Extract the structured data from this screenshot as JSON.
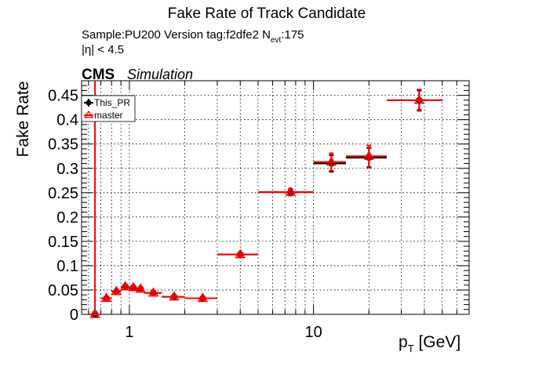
{
  "header": {
    "title": "Fake Rate of Track Candidate",
    "sample_line": "Sample:PU200   Version tag:f2dfe2  N",
    "sample_sub": "evt",
    "sample_count": ":175",
    "eta_cut": "|η| < 4.5",
    "cms": "CMS",
    "simulation": "Simulation"
  },
  "colors": {
    "this_pr": "#000000",
    "master": "#ff0000"
  },
  "chart_data": {
    "type": "scatter",
    "title": "Fake Rate of Track Candidate",
    "ylabel": "Fake Rate",
    "xlabel_main": "p",
    "xlabel_sub": "T",
    "xlabel_unit": " [GeV]",
    "x_scale": "log",
    "xlim": [
      0.55,
      70
    ],
    "ylim": [
      0,
      0.48
    ],
    "grid": true,
    "legend_position": "top-left",
    "xticks": [
      {
        "v": 1,
        "label": "1"
      },
      {
        "v": 10,
        "label": "10"
      }
    ],
    "yticks": [
      {
        "v": 0,
        "label": "0"
      },
      {
        "v": 0.05,
        "label": "0.05"
      },
      {
        "v": 0.1,
        "label": "0.1"
      },
      {
        "v": 0.15,
        "label": "0.15"
      },
      {
        "v": 0.2,
        "label": "0.2"
      },
      {
        "v": 0.25,
        "label": "0.25"
      },
      {
        "v": 0.3,
        "label": "0.3"
      },
      {
        "v": 0.35,
        "label": "0.35"
      },
      {
        "v": 0.4,
        "label": "0.4"
      },
      {
        "v": 0.45,
        "label": "0.45"
      }
    ],
    "series": [
      {
        "name": "This_PR",
        "marker": "circle",
        "points": [
          {
            "x": 0.65,
            "xlo": 0.6,
            "xhi": 0.7,
            "y": 0.0,
            "err": 0.005
          },
          {
            "x": 0.75,
            "xlo": 0.7,
            "xhi": 0.8,
            "y": 0.033,
            "err": 0.004
          },
          {
            "x": 0.85,
            "xlo": 0.8,
            "xhi": 0.9,
            "y": 0.047,
            "err": 0.004
          },
          {
            "x": 0.95,
            "xlo": 0.9,
            "xhi": 1.0,
            "y": 0.057,
            "err": 0.004
          },
          {
            "x": 1.05,
            "xlo": 1.0,
            "xhi": 1.1,
            "y": 0.055,
            "err": 0.004
          },
          {
            "x": 1.15,
            "xlo": 1.1,
            "xhi": 1.2,
            "y": 0.052,
            "err": 0.004
          },
          {
            "x": 1.35,
            "xlo": 1.2,
            "xhi": 1.5,
            "y": 0.044,
            "err": 0.004
          },
          {
            "x": 1.75,
            "xlo": 1.5,
            "xhi": 2.0,
            "y": 0.036,
            "err": 0.003
          },
          {
            "x": 2.5,
            "xlo": 2.0,
            "xhi": 3.0,
            "y": 0.033,
            "err": 0.003
          },
          {
            "x": 4.0,
            "xlo": 3.0,
            "xhi": 5.0,
            "y": 0.123,
            "err": 0.004
          },
          {
            "x": 7.5,
            "xlo": 5.0,
            "xhi": 10.0,
            "y": 0.251,
            "err": 0.007
          },
          {
            "x": 12.5,
            "xlo": 10.0,
            "xhi": 15.0,
            "y": 0.31,
            "err": 0.017
          },
          {
            "x": 20.0,
            "xlo": 15.0,
            "xhi": 25.0,
            "y": 0.322,
            "err": 0.02
          },
          {
            "x": 37.5,
            "xlo": 25.0,
            "xhi": 50.0,
            "y": 0.44,
            "err": 0.02
          }
        ]
      },
      {
        "name": "master",
        "marker": "triangle",
        "points": [
          {
            "x": 0.65,
            "xlo": 0.6,
            "xhi": 0.7,
            "y": 0.0,
            "err": 0.5
          },
          {
            "x": 0.75,
            "xlo": 0.7,
            "xhi": 0.8,
            "y": 0.033,
            "err": 0.004
          },
          {
            "x": 0.85,
            "xlo": 0.8,
            "xhi": 0.9,
            "y": 0.047,
            "err": 0.004
          },
          {
            "x": 0.95,
            "xlo": 0.9,
            "xhi": 1.0,
            "y": 0.057,
            "err": 0.004
          },
          {
            "x": 1.05,
            "xlo": 1.0,
            "xhi": 1.1,
            "y": 0.055,
            "err": 0.004
          },
          {
            "x": 1.15,
            "xlo": 1.1,
            "xhi": 1.2,
            "y": 0.052,
            "err": 0.004
          },
          {
            "x": 1.35,
            "xlo": 1.2,
            "xhi": 1.5,
            "y": 0.044,
            "err": 0.004
          },
          {
            "x": 1.75,
            "xlo": 1.5,
            "xhi": 2.0,
            "y": 0.036,
            "err": 0.003
          },
          {
            "x": 2.5,
            "xlo": 2.0,
            "xhi": 3.0,
            "y": 0.033,
            "err": 0.003
          },
          {
            "x": 4.0,
            "xlo": 3.0,
            "xhi": 5.0,
            "y": 0.123,
            "err": 0.004
          },
          {
            "x": 7.5,
            "xlo": 5.0,
            "xhi": 10.0,
            "y": 0.251,
            "err": 0.007
          },
          {
            "x": 12.5,
            "xlo": 10.0,
            "xhi": 15.0,
            "y": 0.313,
            "err": 0.018
          },
          {
            "x": 20.0,
            "xlo": 15.0,
            "xhi": 25.0,
            "y": 0.325,
            "err": 0.022
          },
          {
            "x": 37.5,
            "xlo": 25.0,
            "xhi": 50.0,
            "y": 0.44,
            "err": 0.022
          }
        ]
      }
    ]
  }
}
